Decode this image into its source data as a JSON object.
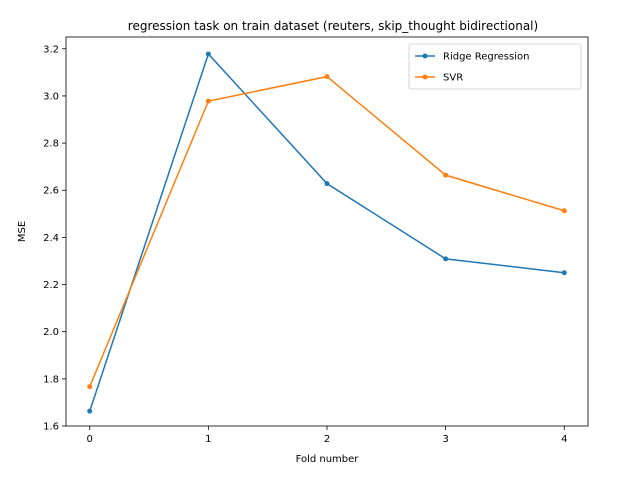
{
  "chart_data": {
    "type": "line",
    "title": "regression task on train dataset (reuters, skip_thought bidirectional)",
    "xlabel": "Fold number",
    "ylabel": "MSE",
    "x": [
      0,
      1,
      2,
      3,
      4
    ],
    "xlim": [
      -0.2,
      4.2
    ],
    "ylim": [
      1.6,
      3.25
    ],
    "xticks": [
      0,
      1,
      2,
      3,
      4
    ],
    "yticks": [
      1.6,
      1.8,
      2.0,
      2.2,
      2.4,
      2.6,
      2.8,
      3.0,
      3.2
    ],
    "grid": false,
    "legend_position": "top-right",
    "series": [
      {
        "name": "Ridge Regression",
        "color": "#1f77b4",
        "values": [
          1.663,
          3.178,
          2.628,
          2.309,
          2.25
        ]
      },
      {
        "name": "SVR",
        "color": "#ff7f0e",
        "values": [
          1.767,
          2.978,
          3.082,
          2.664,
          2.513
        ]
      }
    ]
  }
}
